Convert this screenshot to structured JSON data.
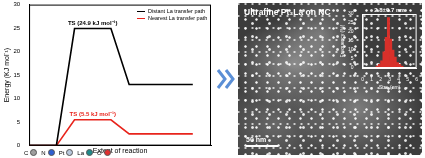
{
  "chart_data": [
    {
      "type": "line",
      "y_label": "Energy (KJ mol⁻¹)",
      "x_label": "Extent of reaction",
      "x": [
        0,
        1.5,
        2.5,
        4.5,
        5.5,
        9
      ],
      "xlim": [
        0,
        10
      ],
      "ylim": [
        0,
        30
      ],
      "yticks": [
        0,
        5,
        10,
        15,
        20,
        25,
        30
      ],
      "tick_labels": "y",
      "grid": false,
      "legend": "upper right",
      "series": [
        {
          "name": "Distant La transfer path",
          "color": "#000000",
          "values": [
            0,
            0,
            24.9,
            24.9,
            13,
            13
          ],
          "annotation": "TS (24.9 kJ mol⁻¹)"
        },
        {
          "name": "Nearest La transfer path",
          "color": "#e8241c",
          "values": [
            0,
            0,
            5.5,
            5.5,
            2.5,
            2.5
          ],
          "annotation": "TS (5.5 kJ mol⁻¹)"
        }
      ]
    },
    {
      "type": "histogram",
      "x_label": "Size (nm)",
      "y_label": "Frequency (%)",
      "annotation": "2.8±0.7 nm",
      "bins": [
        1.5,
        1.75,
        2,
        2.25,
        2.5,
        2.75,
        3,
        3.25,
        3.5,
        3.75,
        4,
        4.25,
        4.5
      ],
      "values": [
        1,
        2,
        4,
        9,
        17,
        28,
        16,
        10,
        6,
        3,
        2,
        1
      ],
      "color": "#d9302a",
      "xlim": [
        0,
        6
      ],
      "xticks": [
        0,
        1,
        2,
        3,
        4,
        5,
        6
      ],
      "ylim": [
        0,
        30
      ],
      "yticks": [
        0,
        5,
        10,
        15,
        20,
        25,
        30
      ],
      "grid": false
    }
  ],
  "image_panel": {
    "title": "Ultrafine Pt₃La on NC",
    "scale_bar": "50 nm"
  },
  "atom_legend": [
    {
      "label": "C",
      "color": "#9e9e9e"
    },
    {
      "label": "N",
      "color": "#2f5fd0"
    },
    {
      "label": "Pt",
      "color": "#b8c8dc"
    },
    {
      "label": "La",
      "color": "#1f8a8a"
    },
    {
      "label": "O",
      "color": "#e03030"
    }
  ]
}
